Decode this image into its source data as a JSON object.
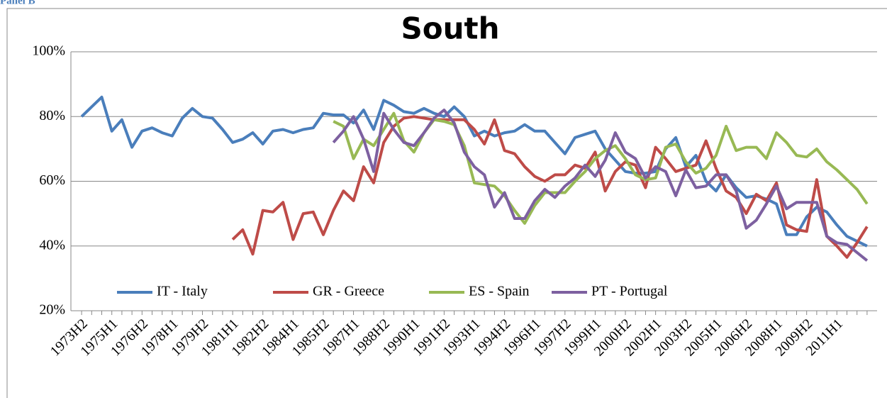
{
  "panel_label": "Panel B",
  "chart_data": {
    "type": "line",
    "title": "South",
    "categories": [
      "1973H2",
      null,
      null,
      "1975H1",
      null,
      null,
      "1976H2",
      null,
      null,
      "1978H1",
      null,
      null,
      "1979H2",
      null,
      null,
      "1981H1",
      null,
      null,
      "1982H2",
      null,
      null,
      "1984H1",
      null,
      null,
      "1985H2",
      null,
      null,
      "1987H1",
      null,
      null,
      "1988H2",
      null,
      null,
      "1990H1",
      null,
      null,
      "1991H2",
      null,
      null,
      "1993H1",
      null,
      null,
      "1994H2",
      null,
      null,
      "1996H1",
      null,
      null,
      "1997H2",
      null,
      null,
      "1999H1",
      null,
      null,
      "2000H2",
      null,
      null,
      "2002H1",
      null,
      null,
      "2003H2",
      null,
      null,
      "2005H1",
      null,
      null,
      "2006H2",
      null,
      null,
      "2008H1",
      null,
      null,
      "2009H2",
      null,
      null,
      "2011H1",
      null,
      null,
      null
    ],
    "series": [
      {
        "name": "IT - Italy",
        "color": "#4a7ebb",
        "values": [
          80,
          83,
          86,
          75.5,
          79,
          70.5,
          75.5,
          76.5,
          75,
          74,
          79.5,
          82.5,
          80,
          79.5,
          76,
          72,
          73,
          75,
          71.5,
          75.5,
          76,
          75,
          76,
          76.5,
          81,
          80.5,
          80.5,
          78,
          82,
          76,
          85,
          83.5,
          81.5,
          81,
          82.5,
          81,
          80,
          83,
          80,
          74,
          75.5,
          74,
          75,
          75.5,
          77.5,
          75.5,
          75.5,
          72,
          68.5,
          73.5,
          74.5,
          75.5,
          70,
          66.5,
          63,
          62.5,
          62.5,
          63,
          70,
          73.5,
          64.5,
          68,
          60,
          57,
          62,
          58,
          55,
          55.5,
          54.5,
          53,
          43.5,
          43.5,
          49,
          52,
          50.5,
          46.5,
          43,
          41.5,
          40
        ]
      },
      {
        "name": "GR - Greece",
        "color": "#be4b48",
        "values": [
          null,
          null,
          null,
          null,
          null,
          null,
          null,
          null,
          null,
          null,
          null,
          null,
          null,
          null,
          null,
          42,
          45,
          37.5,
          51,
          50.5,
          53.5,
          42,
          50,
          50.5,
          43.5,
          51,
          57,
          54,
          64.5,
          59.5,
          72,
          77,
          79.5,
          80,
          79.5,
          79,
          79,
          79,
          79,
          76,
          71.5,
          79,
          69.5,
          68.5,
          64.5,
          61.5,
          60,
          62,
          62,
          65,
          64,
          69,
          57,
          63,
          66,
          65,
          58,
          70.5,
          67,
          63,
          64,
          65,
          72.5,
          64,
          57,
          55,
          50,
          56,
          54,
          59.5,
          46.5,
          45,
          44.5,
          60.5,
          43,
          40,
          36.5,
          41,
          46
        ]
      },
      {
        "name": "ES - Spain",
        "color": "#98b954",
        "values": [
          null,
          null,
          null,
          null,
          null,
          null,
          null,
          null,
          null,
          null,
          null,
          null,
          null,
          null,
          null,
          null,
          null,
          null,
          null,
          null,
          null,
          null,
          null,
          null,
          null,
          78.5,
          77,
          67,
          73,
          71,
          76,
          81,
          72.5,
          69,
          75,
          79,
          78.5,
          77.5,
          71,
          59.5,
          59,
          58.5,
          55.5,
          51,
          47,
          52.5,
          56.5,
          56.5,
          56.5,
          60,
          63,
          67,
          69.5,
          71,
          67,
          62,
          60.5,
          61,
          70.5,
          71.5,
          66,
          62.5,
          64,
          68,
          77,
          69.5,
          70.5,
          70.5,
          67,
          75,
          72,
          68,
          67.5,
          70,
          66,
          63.5,
          60.5,
          57.5,
          53
        ]
      },
      {
        "name": "PT - Portugal",
        "color": "#7d60a0",
        "values": [
          null,
          null,
          null,
          null,
          null,
          null,
          null,
          null,
          null,
          null,
          null,
          null,
          null,
          null,
          null,
          null,
          null,
          null,
          null,
          null,
          null,
          null,
          null,
          null,
          null,
          72,
          75.5,
          80,
          73,
          63,
          81,
          76,
          72,
          71,
          75,
          79.5,
          82,
          78,
          69,
          64.5,
          62,
          52,
          56.5,
          48.5,
          48.5,
          54,
          57.5,
          55,
          58.5,
          61,
          65,
          61.5,
          66.5,
          75,
          69,
          67,
          61,
          64.5,
          63,
          55.5,
          63.5,
          58,
          58.5,
          62,
          62,
          57,
          45.5,
          48,
          53,
          58.5,
          51.5,
          53.5,
          53.5,
          53.5,
          43,
          41,
          40.5,
          38,
          35.5
        ]
      }
    ],
    "ylim": [
      20,
      100
    ],
    "yticks": [
      {
        "value": 20,
        "label": "20%"
      },
      {
        "value": 40,
        "label": "40%"
      },
      {
        "value": 60,
        "label": "60%"
      },
      {
        "value": 80,
        "label": "80%"
      },
      {
        "value": 100,
        "label": "100%"
      }
    ],
    "grid": true,
    "legend": "bottom"
  }
}
